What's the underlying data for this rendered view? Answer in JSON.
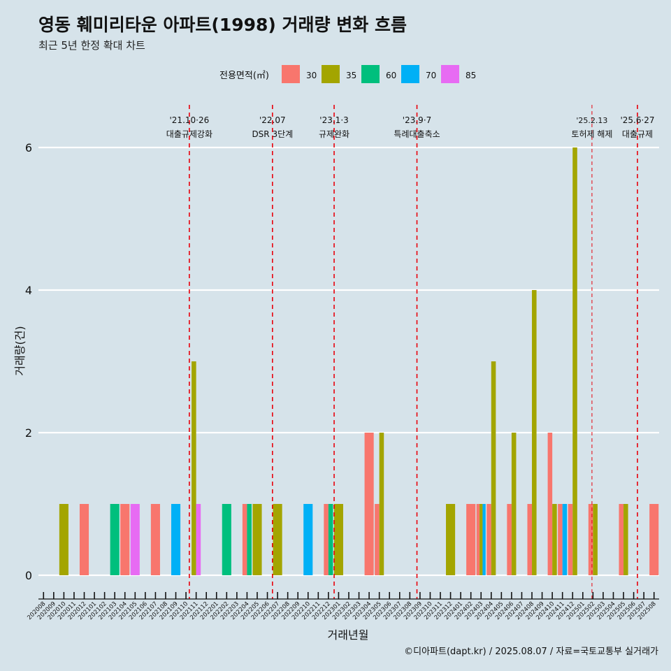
{
  "title": "영동 훼미리타운 아파트(1998) 거래량 변화 흐름",
  "subtitle": "최근 5년 한정 확대 차트",
  "caption": "©디아파트(dapt.kr) / 2025.08.07 / 자료=국토교통부 실거래가",
  "legend": {
    "title": "전용면적(㎡)"
  },
  "colors": {
    "30": "#f8766d",
    "35": "#a3a500",
    "60": "#00bf7d",
    "70": "#00b0f6",
    "85": "#e76bf3",
    "background": "#d6e3ea",
    "event_line": "#e8000b"
  },
  "chart_data": {
    "type": "bar",
    "xlabel": "거래년월",
    "ylabel": "거래량(건)",
    "ylim": [
      0,
      6
    ],
    "yticks": [
      0,
      2,
      4,
      6
    ],
    "grid": "horizontal major lines",
    "legend_position": "top",
    "categories": [
      "202008",
      "202009",
      "202010",
      "202011",
      "202012",
      "202101",
      "202102",
      "202103",
      "202104",
      "202105",
      "202106",
      "202107",
      "202108",
      "202109",
      "202110",
      "202111",
      "202112",
      "202201",
      "202202",
      "202203",
      "202204",
      "202205",
      "202206",
      "202207",
      "202208",
      "202209",
      "202210",
      "202211",
      "202212",
      "202301",
      "202302",
      "202303",
      "202304",
      "202305",
      "202306",
      "202307",
      "202308",
      "202309",
      "202310",
      "202311",
      "202312",
      "202401",
      "202402",
      "202403",
      "202404",
      "202405",
      "202406",
      "202407",
      "202408",
      "202409",
      "202410",
      "202411",
      "202412",
      "202501",
      "202502",
      "202503",
      "202504",
      "202505",
      "202506",
      "202507",
      "202508"
    ],
    "series": [
      {
        "name": "30",
        "color": "#f8766d",
        "values": [
          0,
          0,
          0,
          0,
          1,
          0,
          0,
          0,
          1,
          0,
          0,
          1,
          0,
          0,
          0,
          0,
          0,
          0,
          0,
          0,
          1,
          0,
          0,
          0,
          0,
          0,
          0,
          0,
          1,
          0,
          0,
          0,
          2,
          1,
          0,
          0,
          0,
          0,
          0,
          0,
          0,
          0,
          1,
          1,
          1,
          0,
          1,
          0,
          1,
          0,
          2,
          1,
          1,
          0,
          1,
          0,
          0,
          1,
          0,
          0,
          1
        ]
      },
      {
        "name": "35",
        "color": "#a3a500",
        "values": [
          0,
          0,
          1,
          0,
          0,
          0,
          0,
          0,
          0,
          0,
          0,
          0,
          0,
          0,
          0,
          3,
          0,
          0,
          0,
          0,
          0,
          1,
          0,
          1,
          0,
          0,
          0,
          0,
          0,
          1,
          0,
          0,
          0,
          2,
          0,
          0,
          0,
          0,
          0,
          0,
          1,
          0,
          0,
          1,
          3,
          0,
          2,
          0,
          4,
          0,
          1,
          0,
          6,
          0,
          1,
          0,
          0,
          1,
          0,
          0,
          0
        ]
      },
      {
        "name": "60",
        "color": "#00bf7d",
        "values": [
          0,
          0,
          0,
          0,
          0,
          0,
          0,
          1,
          0,
          0,
          0,
          0,
          0,
          0,
          0,
          0,
          0,
          0,
          1,
          0,
          1,
          0,
          0,
          0,
          0,
          0,
          0,
          0,
          1,
          0,
          0,
          0,
          0,
          0,
          0,
          0,
          0,
          0,
          0,
          0,
          0,
          0,
          0,
          0,
          0,
          0,
          0,
          0,
          0,
          0,
          0,
          0,
          0,
          0,
          0,
          0,
          0,
          0,
          0,
          0,
          0
        ]
      },
      {
        "name": "70",
        "color": "#00b0f6",
        "values": [
          0,
          0,
          0,
          0,
          0,
          0,
          0,
          0,
          0,
          0,
          0,
          0,
          0,
          1,
          0,
          0,
          0,
          0,
          0,
          0,
          0,
          0,
          0,
          0,
          0,
          0,
          1,
          0,
          0,
          0,
          0,
          0,
          0,
          0,
          0,
          0,
          0,
          0,
          0,
          0,
          0,
          0,
          0,
          1,
          0,
          0,
          0,
          0,
          0,
          0,
          0,
          1,
          0,
          0,
          0,
          0,
          0,
          0,
          0,
          0,
          0
        ]
      },
      {
        "name": "85",
        "color": "#e76bf3",
        "values": [
          0,
          0,
          0,
          0,
          0,
          0,
          0,
          0,
          0,
          1,
          0,
          0,
          0,
          0,
          0,
          1,
          0,
          0,
          0,
          0,
          0,
          0,
          0,
          0,
          0,
          0,
          0,
          0,
          0,
          0,
          0,
          0,
          0,
          0,
          0,
          0,
          0,
          0,
          0,
          0,
          0,
          0,
          0,
          0,
          0,
          0,
          0,
          0,
          0,
          0,
          0,
          0,
          0,
          0,
          0,
          0,
          0,
          0,
          0,
          0,
          0
        ]
      }
    ],
    "events": [
      {
        "date": "'21.10·26",
        "label": "대출규제강화",
        "month": "202110",
        "frac": 0.83,
        "style": "dashed"
      },
      {
        "date": "'22.07",
        "label": "DSR 3단계",
        "month": "202207",
        "frac": 0.0,
        "style": "dashed"
      },
      {
        "date": "'23.1·3",
        "label": "규제완화",
        "month": "202301",
        "frac": 0.06,
        "style": "dashed"
      },
      {
        "date": "'23.9·7",
        "label": "특례대출축소",
        "month": "202309",
        "frac": 0.2,
        "style": "dashed"
      },
      {
        "date": "'25.2.13",
        "label": "토허제 해제",
        "month": "202502",
        "frac": 0.4,
        "style": "thin-dashed"
      },
      {
        "date": "'25.6·27",
        "label": "대출규제",
        "month": "202506",
        "frac": 0.87,
        "style": "dashed"
      }
    ]
  }
}
